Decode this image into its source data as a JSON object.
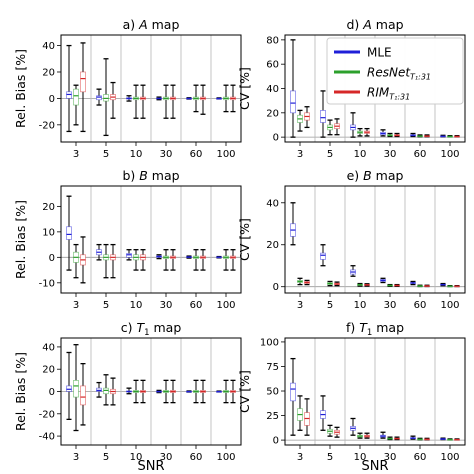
{
  "figure": {
    "xlabel": "SNR",
    "legend": {
      "placement": "top-right of panel d",
      "entries": [
        {
          "name": "MLE",
          "color": "#1f1fd8"
        },
        {
          "name": "ResNet",
          "sub": "T₁:31",
          "color": "#2ca02c"
        },
        {
          "name": "RIM",
          "sub": "T₁:31",
          "color": "#d62728"
        }
      ]
    }
  },
  "chart_data": [
    {
      "type": "box",
      "panel": "a",
      "title_prefix": "a)",
      "title_var": "A",
      "title_suffix": " map",
      "ylabel": "Rel. Bias [%]",
      "ylim": [
        -33,
        48
      ],
      "yticks": [
        -20,
        0,
        20,
        40
      ],
      "categories": [
        "3",
        "5",
        "10",
        "30",
        "60",
        "100"
      ],
      "grid": false,
      "baseline": 0,
      "series": [
        {
          "name": "MLE",
          "boxes": [
            [
              -25,
              0,
              3,
              5,
              40
            ],
            [
              -5,
              -1,
              1,
              2,
              7
            ],
            [
              -2,
              -0.5,
              0,
              0.5,
              2
            ],
            [
              -1,
              -0.3,
              0,
              0.3,
              1
            ],
            [
              -0.5,
              -0.2,
              0,
              0.2,
              0.5
            ],
            [
              -0.4,
              -0.1,
              0,
              0.1,
              0.4
            ]
          ]
        },
        {
          "name": "ResNet",
          "boxes": [
            [
              -20,
              -5,
              2,
              7,
              10
            ],
            [
              -28,
              -2,
              0,
              3,
              30
            ],
            [
              -15,
              -1,
              0,
              1,
              10
            ],
            [
              -15,
              -1,
              0,
              1,
              10
            ],
            [
              -10,
              -1,
              0,
              1,
              10
            ],
            [
              -10,
              -1,
              0,
              1,
              10
            ]
          ]
        },
        {
          "name": "RIM",
          "boxes": [
            [
              -25,
              5,
              15,
              20,
              42
            ],
            [
              -15,
              -1,
              1,
              3,
              12
            ],
            [
              -15,
              -1,
              0,
              1,
              10
            ],
            [
              -15,
              -1,
              0,
              1,
              10
            ],
            [
              -12,
              -1,
              0,
              1,
              10
            ],
            [
              -10,
              -1,
              0,
              1,
              10
            ]
          ]
        }
      ]
    },
    {
      "type": "box",
      "panel": "b",
      "title_prefix": "b)",
      "title_var": "B",
      "title_suffix": " map",
      "ylabel": "Rel. Bias [%]",
      "ylim": [
        -14,
        28
      ],
      "yticks": [
        -10,
        0,
        10,
        20
      ],
      "categories": [
        "3",
        "5",
        "10",
        "30",
        "60",
        "100"
      ],
      "grid": false,
      "baseline": 0,
      "series": [
        {
          "name": "MLE",
          "boxes": [
            [
              -5,
              7,
              9,
              12,
              24
            ],
            [
              -1,
              1,
              2,
              3,
              5
            ],
            [
              -1,
              0,
              1,
              1.5,
              3
            ],
            [
              -0.5,
              0,
              0.3,
              0.6,
              1
            ],
            [
              -0.3,
              0,
              0.1,
              0.3,
              0.5
            ],
            [
              -0.2,
              0,
              0.1,
              0.2,
              0.3
            ]
          ]
        },
        {
          "name": "ResNet",
          "boxes": [
            [
              -8,
              -2,
              0,
              2,
              5
            ],
            [
              -8,
              -1,
              0,
              1,
              5
            ],
            [
              -5,
              -1,
              0,
              1,
              3
            ],
            [
              -5,
              -0.5,
              0,
              0.5,
              3
            ],
            [
              -5,
              -0.5,
              0,
              0.5,
              3
            ],
            [
              -5,
              -0.5,
              0,
              0.5,
              3
            ]
          ]
        },
        {
          "name": "RIM",
          "boxes": [
            [
              -10,
              -3,
              -1,
              1,
              8
            ],
            [
              -8,
              -1,
              0,
              1,
              5
            ],
            [
              -5,
              -1,
              0,
              1,
              3
            ],
            [
              -5,
              -0.5,
              0,
              0.5,
              3
            ],
            [
              -5,
              -0.5,
              0,
              0.5,
              3
            ],
            [
              -5,
              -0.5,
              0,
              0.5,
              3
            ]
          ]
        }
      ]
    },
    {
      "type": "box",
      "panel": "c",
      "title_prefix": "c)",
      "title_var": "T",
      "title_sub": "1",
      "title_suffix": " map",
      "ylabel": "Rel. Bias [%]",
      "ylim": [
        -48,
        48
      ],
      "yticks": [
        -40,
        -20,
        0,
        20,
        40
      ],
      "categories": [
        "3",
        "5",
        "10",
        "30",
        "60",
        "100"
      ],
      "grid": false,
      "baseline": 0,
      "series": [
        {
          "name": "MLE",
          "boxes": [
            [
              -25,
              0,
              2,
              5,
              35
            ],
            [
              -5,
              0,
              1,
              3,
              8
            ],
            [
              -2,
              -0.5,
              0,
              0.5,
              3
            ],
            [
              -1,
              -0.3,
              0,
              0.3,
              1
            ],
            [
              -0.5,
              -0.2,
              0,
              0.2,
              0.5
            ],
            [
              -0.4,
              -0.1,
              0,
              0.1,
              0.4
            ]
          ]
        },
        {
          "name": "ResNet",
          "boxes": [
            [
              -35,
              -5,
              5,
              10,
              42
            ],
            [
              -12,
              -2,
              1,
              3,
              15
            ],
            [
              -10,
              -1,
              0,
              1,
              10
            ],
            [
              -10,
              -1,
              0,
              1,
              10
            ],
            [
              -10,
              -1,
              0,
              1,
              10
            ],
            [
              -10,
              -1,
              0,
              1,
              10
            ]
          ]
        },
        {
          "name": "RIM",
          "boxes": [
            [
              -30,
              -12,
              -5,
              5,
              25
            ],
            [
              -12,
              -2,
              0,
              2,
              12
            ],
            [
              -10,
              -1,
              0,
              1,
              10
            ],
            [
              -10,
              -1,
              0,
              1,
              10
            ],
            [
              -10,
              -1,
              0,
              1,
              10
            ],
            [
              -10,
              -1,
              0,
              1,
              10
            ]
          ]
        }
      ]
    },
    {
      "type": "box",
      "panel": "d",
      "title_prefix": "d)",
      "title_var": "A",
      "title_suffix": " map",
      "ylabel": "CV [%]",
      "ylim": [
        -4,
        84
      ],
      "yticks": [
        0,
        20,
        40,
        60,
        80
      ],
      "categories": [
        "3",
        "5",
        "10",
        "30",
        "60",
        "100"
      ],
      "grid": false,
      "baseline": 0,
      "series": [
        {
          "name": "MLE",
          "boxes": [
            [
              0,
              20,
              28,
              38,
              80
            ],
            [
              0,
              12,
              16,
              22,
              38
            ],
            [
              0,
              6,
              8,
              10,
              20
            ],
            [
              1,
              2,
              3,
              4,
              6
            ],
            [
              0.5,
              1,
              1.5,
              2,
              3
            ],
            [
              0.3,
              0.5,
              0.7,
              1,
              1.5
            ]
          ]
        },
        {
          "name": "ResNet",
          "boxes": [
            [
              5,
              12,
              15,
              18,
              22
            ],
            [
              2,
              6,
              8,
              10,
              14
            ],
            [
              1,
              3,
              4,
              5,
              7
            ],
            [
              0.5,
              1,
              1.5,
              2,
              3
            ],
            [
              0.3,
              0.6,
              0.9,
              1.2,
              1.8
            ],
            [
              0.2,
              0.4,
              0.6,
              0.8,
              1.2
            ]
          ]
        },
        {
          "name": "RIM",
          "boxes": [
            [
              8,
              14,
              17,
              20,
              25
            ],
            [
              2,
              7,
              9,
              11,
              15
            ],
            [
              1,
              3,
              4,
              5,
              7
            ],
            [
              0.5,
              1,
              1.5,
              2,
              3
            ],
            [
              0.3,
              0.6,
              0.9,
              1.2,
              1.8
            ],
            [
              0.2,
              0.4,
              0.6,
              0.8,
              1.2
            ]
          ]
        }
      ]
    },
    {
      "type": "box",
      "panel": "e",
      "title_prefix": "e)",
      "title_var": "B",
      "title_suffix": " map",
      "ylabel": "CV [%]",
      "ylim": [
        -3,
        48
      ],
      "yticks": [
        0,
        20,
        40
      ],
      "categories": [
        "3",
        "5",
        "10",
        "30",
        "60",
        "100"
      ],
      "grid": false,
      "baseline": 0,
      "series": [
        {
          "name": "MLE",
          "boxes": [
            [
              20,
              24,
              27,
              30,
              40
            ],
            [
              10,
              13,
              15,
              16,
              20
            ],
            [
              5,
              6,
              7,
              8,
              10
            ],
            [
              2,
              2.5,
              3,
              3.5,
              4
            ],
            [
              1,
              1.5,
              1.8,
              2,
              2.5
            ],
            [
              0.5,
              0.8,
              1,
              1.2,
              1.5
            ]
          ]
        },
        {
          "name": "ResNet",
          "boxes": [
            [
              1,
              2,
              2.5,
              3,
              4
            ],
            [
              0.5,
              1,
              1.5,
              2,
              2.5
            ],
            [
              0.3,
              0.6,
              1,
              1.2,
              1.5
            ],
            [
              0.2,
              0.4,
              0.6,
              0.8,
              1
            ],
            [
              0.1,
              0.3,
              0.4,
              0.5,
              0.7
            ],
            [
              0.1,
              0.2,
              0.3,
              0.4,
              0.5
            ]
          ]
        },
        {
          "name": "RIM",
          "boxes": [
            [
              1,
              1.5,
              2,
              2.5,
              3
            ],
            [
              0.5,
              1,
              1.3,
              1.7,
              2.2
            ],
            [
              0.3,
              0.6,
              0.9,
              1.1,
              1.4
            ],
            [
              0.2,
              0.4,
              0.6,
              0.8,
              1
            ],
            [
              0.1,
              0.3,
              0.4,
              0.5,
              0.7
            ],
            [
              0.1,
              0.2,
              0.3,
              0.4,
              0.5
            ]
          ]
        }
      ]
    },
    {
      "type": "box",
      "panel": "f",
      "title_prefix": "f)",
      "title_var": "T",
      "title_sub": "1",
      "title_suffix": " map",
      "ylabel": "CV [%]",
      "ylim": [
        -5,
        104
      ],
      "yticks": [
        0,
        25,
        50,
        75,
        100
      ],
      "categories": [
        "3",
        "5",
        "10",
        "30",
        "60",
        "100"
      ],
      "grid": false,
      "baseline": 0,
      "series": [
        {
          "name": "MLE",
          "boxes": [
            [
              5,
              40,
              52,
              58,
              83
            ],
            [
              10,
              22,
              26,
              30,
              45
            ],
            [
              5,
              10,
              12,
              14,
              22
            ],
            [
              2,
              3,
              4,
              5,
              8
            ],
            [
              1,
              1.5,
              2,
              2.5,
              4
            ],
            [
              0.5,
              1,
              1.2,
              1.5,
              2
            ]
          ]
        },
        {
          "name": "ResNet",
          "boxes": [
            [
              10,
              20,
              26,
              32,
              45
            ],
            [
              4,
              7,
              9,
              11,
              15
            ],
            [
              2,
              3,
              4,
              5,
              7
            ],
            [
              0.5,
              1,
              1.5,
              2,
              3
            ],
            [
              0.3,
              0.6,
              0.9,
              1.2,
              1.8
            ],
            [
              0.2,
              0.4,
              0.6,
              0.8,
              1.2
            ]
          ]
        },
        {
          "name": "RIM",
          "boxes": [
            [
              5,
              15,
              22,
              28,
              42
            ],
            [
              3,
              6,
              8,
              10,
              13
            ],
            [
              2,
              3,
              4,
              5,
              7
            ],
            [
              0.5,
              1,
              1.5,
              2,
              3
            ],
            [
              0.3,
              0.6,
              0.9,
              1.2,
              1.8
            ],
            [
              0.2,
              0.4,
              0.6,
              0.8,
              1.2
            ]
          ]
        }
      ]
    }
  ]
}
